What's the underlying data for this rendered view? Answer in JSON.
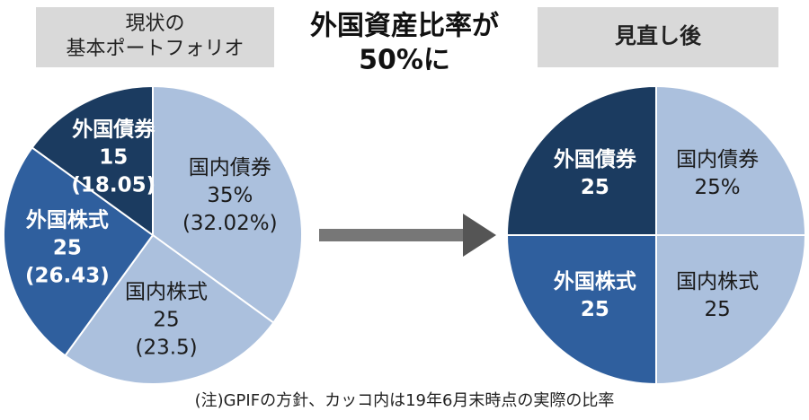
{
  "chart_data": {
    "title": [
      "外国資産比率が",
      "50%に"
    ],
    "note": "(注)GPIFの方針、カッコ内は19年6月末時点の実際の比率",
    "charts": [
      {
        "type": "pie",
        "title": [
          "現状の",
          "基本ポートフォリオ"
        ],
        "categories": [
          "国内債券",
          "国内株式",
          "外国株式",
          "外国債券"
        ],
        "values": [
          35,
          25,
          25,
          15
        ],
        "value_labels": [
          "35%",
          "25",
          "25",
          "15"
        ],
        "actual_values": [
          32.02,
          23.5,
          26.43,
          18.05
        ],
        "actual_labels": [
          "(32.02%)",
          "(23.5)",
          "(26.43)",
          "(18.05)"
        ],
        "colors": [
          "#abc0dd",
          "#abc0dd",
          "#2f5f9e",
          "#1b3b60"
        ]
      },
      {
        "type": "pie",
        "title": [
          "見直し後"
        ],
        "categories": [
          "国内債券",
          "国内株式",
          "外国株式",
          "外国債券"
        ],
        "values": [
          25,
          25,
          25,
          25
        ],
        "value_labels": [
          "25%",
          "25",
          "25",
          "25"
        ],
        "colors": [
          "#abc0dd",
          "#abc0dd",
          "#2f5f9e",
          "#1b3b60"
        ]
      }
    ]
  }
}
